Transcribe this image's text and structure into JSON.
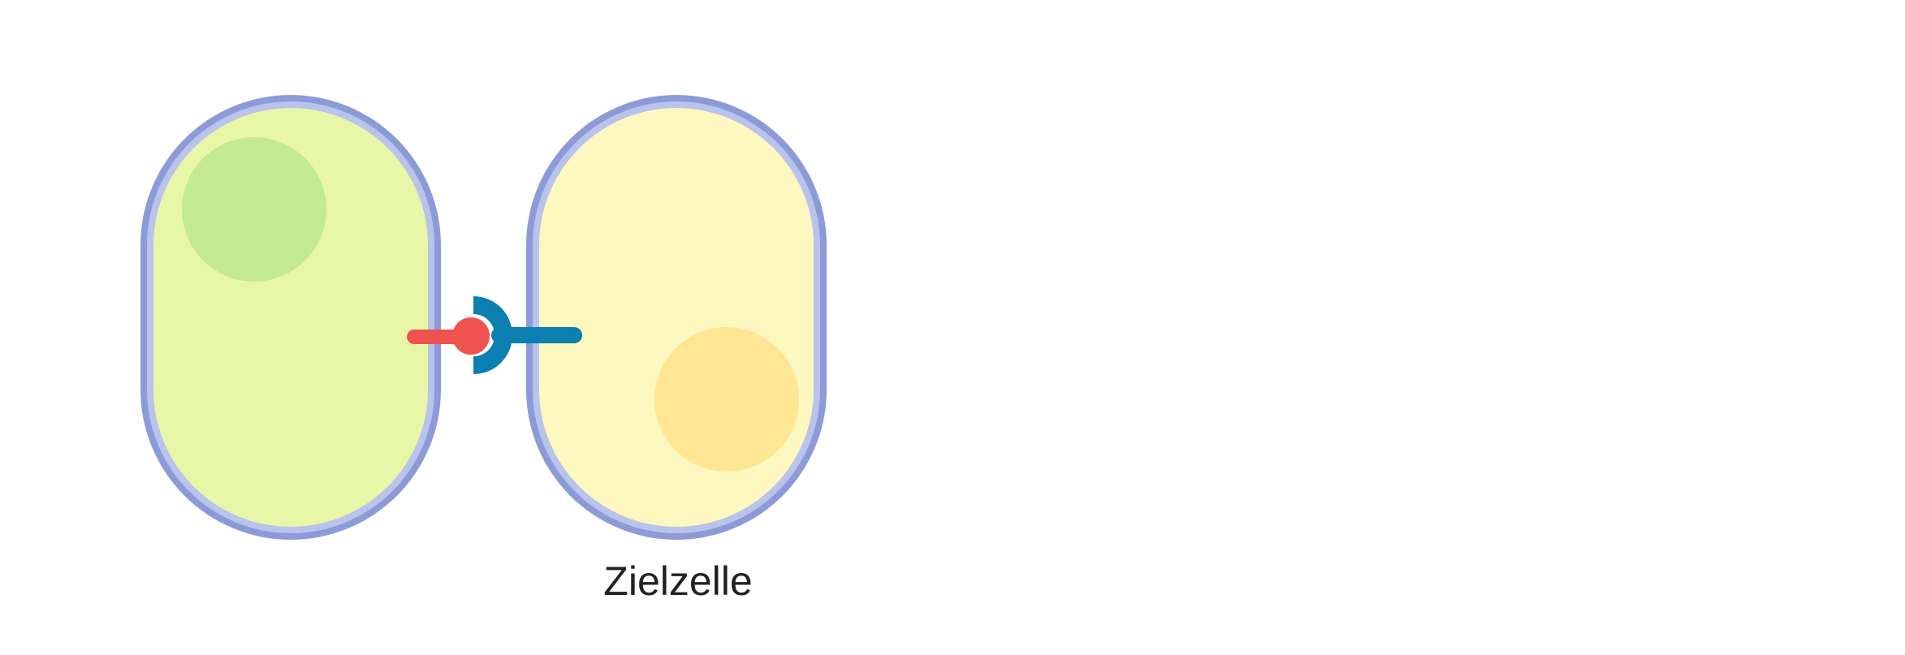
{
  "diagram": {
    "labels": {
      "target_cell": "Zielzelle"
    },
    "colors": {
      "membrane_outer": "#8c9bd8",
      "membrane_inner": "#b9c3ec",
      "left_cell_fill": "#e8f6a8",
      "left_cell_nucleus": "#c4ea90",
      "target_cell_fill": "#fdf7c0",
      "target_cell_nucleus": "#ffe695",
      "ligand": "#ef5350",
      "receptor": "#0a7fb0"
    }
  }
}
